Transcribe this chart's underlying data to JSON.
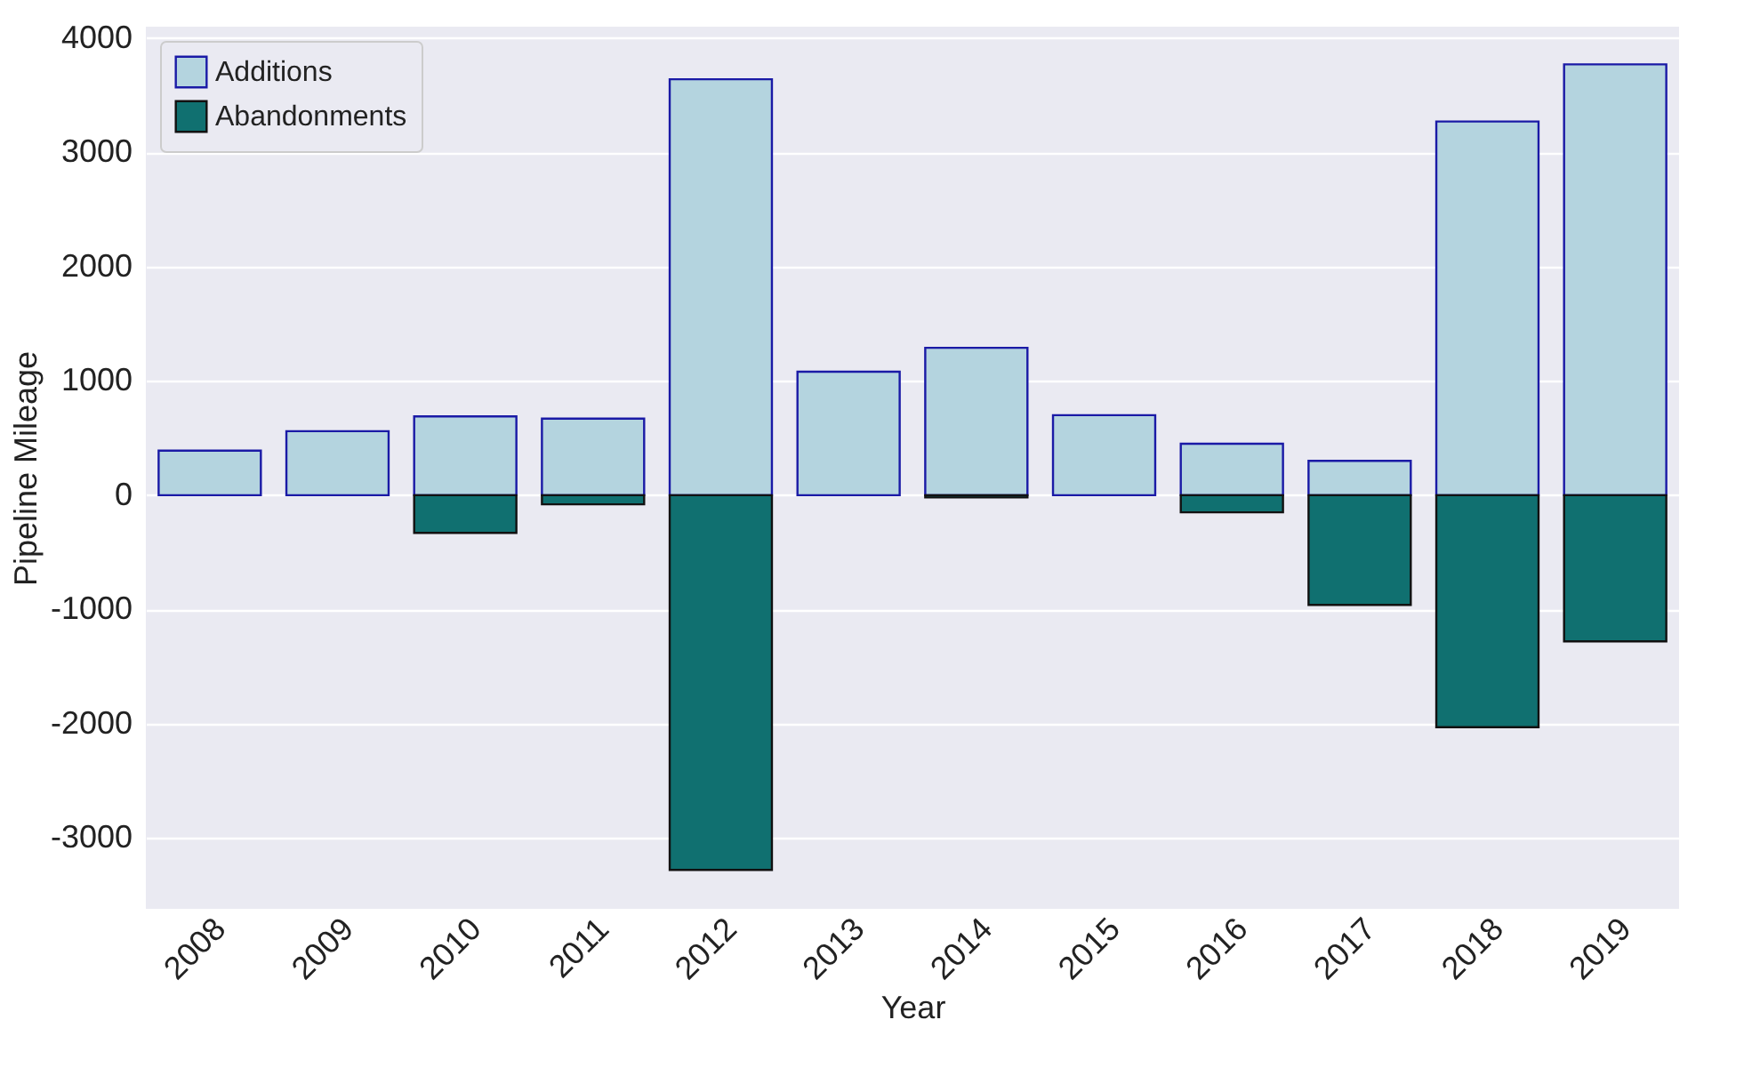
{
  "chart_data": {
    "type": "bar",
    "xlabel": "Year",
    "ylabel": "Pipeline Mileage",
    "categories": [
      "2008",
      "2009",
      "2010",
      "2011",
      "2012",
      "2013",
      "2014",
      "2015",
      "2016",
      "2017",
      "2018",
      "2019"
    ],
    "series": [
      {
        "name": "Additions",
        "color": "#b4d4df",
        "values": [
          390,
          560,
          690,
          670,
          3640,
          1080,
          1290,
          700,
          450,
          300,
          3270,
          3770
        ]
      },
      {
        "name": "Abandonments",
        "color": "#107070",
        "values": [
          null,
          null,
          -330,
          -80,
          -3280,
          null,
          -20,
          null,
          -150,
          -960,
          -2030,
          -1280
        ]
      }
    ],
    "ylim": [
      -3620,
      4100
    ],
    "yticks": [
      -3000,
      -2000,
      -1000,
      0,
      1000,
      2000,
      3000,
      4000
    ],
    "grid": "y",
    "legend": "top left",
    "stacked": true
  }
}
